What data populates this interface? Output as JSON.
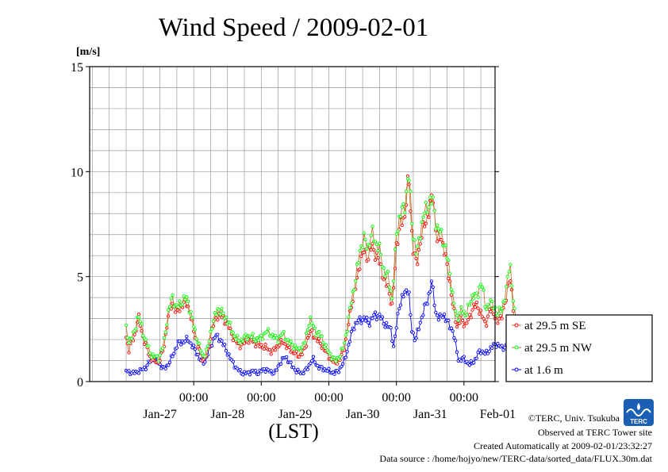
{
  "chart_data": {
    "type": "line",
    "title": "Wind Speed / 2009-02-01",
    "ylabel": "[m/s]",
    "xlabel": "(LST)",
    "ylim": [
      0,
      15
    ],
    "yticks": [
      "0",
      "5",
      "10",
      "15"
    ],
    "xlim_days": [
      -0.54,
      5.46
    ],
    "x_time_ticks": [
      "00:00",
      "00:00",
      "00:00",
      "00:00",
      "00:00"
    ],
    "x_date_labels": [
      "Jan-27",
      "Jan-28",
      "Jan-29",
      "Jan-30",
      "Jan-31",
      "Feb-01"
    ],
    "grid": true,
    "legend_position": "right",
    "interval_minutes": 30,
    "series": [
      {
        "name": "at 29.5 m SE",
        "color": "#ff0000",
        "line_color": "#c87533",
        "anchors": [
          [
            0.0,
            2.1
          ],
          [
            0.04,
            1.5
          ],
          [
            0.08,
            1.9
          ],
          [
            0.12,
            2.1
          ],
          [
            0.18,
            3.1
          ],
          [
            0.26,
            2.0
          ],
          [
            0.32,
            1.5
          ],
          [
            0.36,
            1.1
          ],
          [
            0.42,
            1.0
          ],
          [
            0.48,
            0.9
          ],
          [
            0.55,
            1.5
          ],
          [
            0.62,
            3.0
          ],
          [
            0.68,
            3.8
          ],
          [
            0.74,
            3.3
          ],
          [
            0.82,
            3.6
          ],
          [
            0.9,
            3.8
          ],
          [
            0.96,
            3.0
          ],
          [
            1.02,
            2.2
          ],
          [
            1.08,
            1.5
          ],
          [
            1.14,
            1.0
          ],
          [
            1.2,
            1.3
          ],
          [
            1.28,
            2.6
          ],
          [
            1.36,
            3.2
          ],
          [
            1.44,
            3.0
          ],
          [
            1.52,
            2.6
          ],
          [
            1.6,
            2.0
          ],
          [
            1.68,
            1.7
          ],
          [
            1.76,
            1.9
          ],
          [
            1.84,
            2.0
          ],
          [
            1.92,
            1.8
          ],
          [
            2.0,
            1.7
          ],
          [
            2.08,
            1.6
          ],
          [
            2.16,
            1.4
          ],
          [
            2.24,
            1.7
          ],
          [
            2.32,
            1.9
          ],
          [
            2.4,
            1.6
          ],
          [
            2.48,
            1.4
          ],
          [
            2.56,
            1.2
          ],
          [
            2.64,
            1.5
          ],
          [
            2.72,
            2.4
          ],
          [
            2.8,
            2.1
          ],
          [
            2.88,
            1.8
          ],
          [
            2.96,
            1.4
          ],
          [
            3.04,
            1.0
          ],
          [
            3.1,
            0.9
          ],
          [
            3.16,
            1.0
          ],
          [
            3.22,
            1.5
          ],
          [
            3.28,
            2.5
          ],
          [
            3.34,
            3.8
          ],
          [
            3.4,
            4.5
          ],
          [
            3.46,
            5.7
          ],
          [
            3.52,
            6.2
          ],
          [
            3.58,
            5.9
          ],
          [
            3.64,
            6.5
          ],
          [
            3.7,
            6.0
          ],
          [
            3.76,
            5.6
          ],
          [
            3.82,
            4.8
          ],
          [
            3.88,
            4.5
          ],
          [
            3.94,
            3.5
          ],
          [
            4.0,
            6.5
          ],
          [
            4.06,
            7.5
          ],
          [
            4.12,
            7.8
          ],
          [
            4.18,
            9.8
          ],
          [
            4.24,
            6.5
          ],
          [
            4.3,
            5.5
          ],
          [
            4.36,
            6.8
          ],
          [
            4.42,
            7.5
          ],
          [
            4.48,
            8.1
          ],
          [
            4.54,
            8.9
          ],
          [
            4.6,
            6.7
          ],
          [
            4.66,
            7.0
          ],
          [
            4.72,
            6.0
          ],
          [
            4.78,
            5.0
          ],
          [
            4.84,
            3.5
          ],
          [
            4.9,
            2.6
          ],
          [
            4.96,
            3.0
          ],
          [
            5.02,
            2.7
          ],
          [
            5.08,
            3.0
          ],
          [
            5.14,
            3.6
          ],
          [
            5.2,
            3.6
          ],
          [
            5.26,
            3.2
          ],
          [
            5.32,
            2.7
          ],
          [
            5.38,
            3.4
          ],
          [
            5.44,
            3.3
          ],
          [
            5.5,
            2.8
          ],
          [
            5.56,
            3.2
          ],
          [
            5.62,
            3.8
          ],
          [
            5.68,
            5.2
          ],
          [
            5.74,
            3.0
          ],
          [
            5.8,
            2.2
          ],
          [
            5.86,
            2.3
          ],
          [
            5.92,
            1.6
          ],
          [
            5.96,
            0.9
          ]
        ]
      },
      {
        "name": "at 29.5 m NW",
        "color": "#00ff00",
        "line_color": "#c87533",
        "anchors": [
          [
            0.0,
            2.5
          ],
          [
            0.04,
            1.9
          ],
          [
            0.08,
            2.1
          ],
          [
            0.12,
            2.3
          ],
          [
            0.18,
            3.2
          ],
          [
            0.26,
            2.2
          ],
          [
            0.32,
            1.7
          ],
          [
            0.36,
            1.3
          ],
          [
            0.42,
            1.2
          ],
          [
            0.48,
            1.1
          ],
          [
            0.55,
            1.7
          ],
          [
            0.62,
            3.2
          ],
          [
            0.68,
            4.1
          ],
          [
            0.74,
            3.5
          ],
          [
            0.82,
            3.8
          ],
          [
            0.9,
            4.0
          ],
          [
            0.96,
            3.2
          ],
          [
            1.02,
            2.4
          ],
          [
            1.08,
            1.7
          ],
          [
            1.14,
            1.2
          ],
          [
            1.2,
            1.5
          ],
          [
            1.28,
            2.8
          ],
          [
            1.36,
            3.5
          ],
          [
            1.44,
            3.2
          ],
          [
            1.52,
            2.8
          ],
          [
            1.6,
            2.2
          ],
          [
            1.68,
            1.9
          ],
          [
            1.76,
            2.1
          ],
          [
            1.84,
            2.2
          ],
          [
            1.92,
            2.0
          ],
          [
            2.0,
            2.1
          ],
          [
            2.08,
            2.4
          ],
          [
            2.16,
            2.2
          ],
          [
            2.24,
            2.0
          ],
          [
            2.32,
            2.3
          ],
          [
            2.4,
            1.9
          ],
          [
            2.48,
            1.7
          ],
          [
            2.56,
            1.5
          ],
          [
            2.64,
            1.8
          ],
          [
            2.72,
            3.0
          ],
          [
            2.8,
            2.4
          ],
          [
            2.88,
            2.2
          ],
          [
            2.96,
            1.6
          ],
          [
            3.04,
            1.2
          ],
          [
            3.1,
            1.0
          ],
          [
            3.16,
            1.2
          ],
          [
            3.22,
            1.7
          ],
          [
            3.28,
            2.7
          ],
          [
            3.34,
            4.0
          ],
          [
            3.4,
            4.9
          ],
          [
            3.46,
            6.3
          ],
          [
            3.52,
            6.8
          ],
          [
            3.58,
            6.4
          ],
          [
            3.64,
            7.1
          ],
          [
            3.7,
            6.6
          ],
          [
            3.76,
            6.2
          ],
          [
            3.82,
            5.2
          ],
          [
            3.88,
            5.0
          ],
          [
            3.94,
            3.9
          ],
          [
            4.0,
            7.1
          ],
          [
            4.06,
            8.0
          ],
          [
            4.12,
            8.3
          ],
          [
            4.18,
            10.0
          ],
          [
            4.24,
            7.2
          ],
          [
            4.3,
            6.0
          ],
          [
            4.36,
            7.3
          ],
          [
            4.42,
            8.1
          ],
          [
            4.48,
            8.5
          ],
          [
            4.54,
            8.6
          ],
          [
            4.6,
            7.3
          ],
          [
            4.66,
            7.1
          ],
          [
            4.72,
            6.4
          ],
          [
            4.78,
            5.5
          ],
          [
            4.84,
            3.9
          ],
          [
            4.9,
            3.0
          ],
          [
            4.96,
            3.4
          ],
          [
            5.02,
            3.2
          ],
          [
            5.08,
            3.6
          ],
          [
            5.14,
            4.2
          ],
          [
            5.2,
            4.0
          ],
          [
            5.26,
            4.9
          ],
          [
            5.32,
            3.4
          ],
          [
            5.38,
            3.8
          ],
          [
            5.44,
            3.6
          ],
          [
            5.5,
            3.2
          ],
          [
            5.56,
            3.5
          ],
          [
            5.62,
            4.2
          ],
          [
            5.68,
            5.8
          ],
          [
            5.74,
            3.4
          ],
          [
            5.8,
            2.6
          ],
          [
            5.86,
            2.7
          ],
          [
            5.92,
            1.9
          ],
          [
            5.96,
            1.2
          ]
        ]
      },
      {
        "name": "at 1.6 m",
        "color": "#0000ff",
        "line_color": "#0000ff",
        "anchors": [
          [
            0.0,
            0.5
          ],
          [
            0.1,
            0.4
          ],
          [
            0.2,
            0.5
          ],
          [
            0.3,
            0.7
          ],
          [
            0.36,
            1.0
          ],
          [
            0.42,
            1.1
          ],
          [
            0.5,
            0.8
          ],
          [
            0.56,
            0.6
          ],
          [
            0.62,
            0.8
          ],
          [
            0.7,
            1.3
          ],
          [
            0.76,
            1.8
          ],
          [
            0.84,
            1.9
          ],
          [
            0.92,
            2.0
          ],
          [
            0.98,
            1.7
          ],
          [
            1.04,
            1.4
          ],
          [
            1.1,
            1.0
          ],
          [
            1.16,
            0.9
          ],
          [
            1.24,
            1.6
          ],
          [
            1.32,
            2.2
          ],
          [
            1.4,
            2.0
          ],
          [
            1.48,
            1.5
          ],
          [
            1.56,
            1.0
          ],
          [
            1.64,
            0.6
          ],
          [
            1.72,
            0.4
          ],
          [
            1.8,
            0.4
          ],
          [
            1.88,
            0.5
          ],
          [
            1.96,
            0.4
          ],
          [
            2.04,
            0.6
          ],
          [
            2.12,
            0.5
          ],
          [
            2.2,
            0.4
          ],
          [
            2.28,
            0.9
          ],
          [
            2.36,
            1.2
          ],
          [
            2.44,
            0.8
          ],
          [
            2.52,
            0.5
          ],
          [
            2.6,
            0.4
          ],
          [
            2.68,
            0.6
          ],
          [
            2.76,
            1.1
          ],
          [
            2.84,
            0.7
          ],
          [
            2.92,
            0.6
          ],
          [
            3.0,
            0.5
          ],
          [
            3.08,
            0.4
          ],
          [
            3.14,
            0.5
          ],
          [
            3.22,
            0.9
          ],
          [
            3.3,
            1.8
          ],
          [
            3.36,
            2.6
          ],
          [
            3.44,
            2.9
          ],
          [
            3.52,
            3.0
          ],
          [
            3.6,
            2.8
          ],
          [
            3.68,
            3.2
          ],
          [
            3.76,
            3.1
          ],
          [
            3.84,
            2.7
          ],
          [
            3.92,
            2.5
          ],
          [
            3.96,
            1.6
          ],
          [
            4.04,
            3.6
          ],
          [
            4.12,
            4.2
          ],
          [
            4.18,
            4.5
          ],
          [
            4.22,
            2.5
          ],
          [
            4.28,
            2.0
          ],
          [
            4.34,
            2.6
          ],
          [
            4.4,
            3.4
          ],
          [
            4.46,
            3.8
          ],
          [
            4.52,
            4.8
          ],
          [
            4.58,
            3.3
          ],
          [
            4.64,
            3.0
          ],
          [
            4.7,
            3.2
          ],
          [
            4.76,
            2.8
          ],
          [
            4.84,
            2.4
          ],
          [
            4.92,
            1.0
          ],
          [
            5.0,
            1.1
          ],
          [
            5.08,
            0.8
          ],
          [
            5.16,
            1.0
          ],
          [
            5.24,
            1.5
          ],
          [
            5.32,
            1.3
          ],
          [
            5.4,
            1.6
          ],
          [
            5.48,
            1.8
          ],
          [
            5.56,
            1.6
          ],
          [
            5.64,
            1.7
          ],
          [
            5.72,
            1.4
          ],
          [
            5.8,
            0.8
          ],
          [
            5.88,
            0.4
          ],
          [
            5.96,
            0.2
          ]
        ]
      }
    ]
  },
  "credits": {
    "copyright": "©TERC, Univ. Tsukuba",
    "observed": "Observed at TERC Tower site",
    "created": "Created Automatically at 2009-02-01/23:32:27",
    "source": "Data source : /home/hojyo/new/TERC-data/sorted_data/FLUX.30m.dat",
    "logo_text": "TERC"
  }
}
